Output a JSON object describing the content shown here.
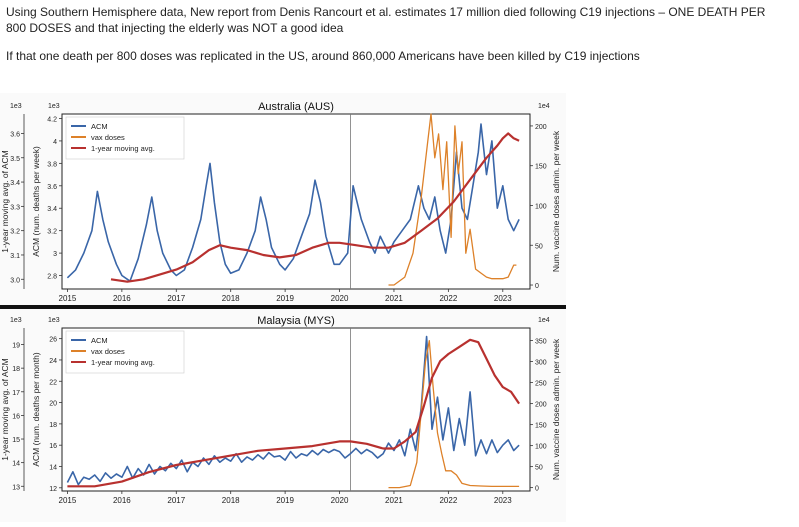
{
  "text": {
    "headline": "Using Southern Hemisphere data, New report from Denis Rancourt et al. estimates 17 million died following C19 injections – ONE DEATH PER 800 DOSES and that injecting the elderly was NOT a good idea",
    "subline": "If that one death per 800 doses was replicated in the US, around 860,000 Americans have been killed by C19 injections"
  },
  "colors": {
    "acm": "#3a66a8",
    "vax": "#dd8129",
    "avg": "#b8312f",
    "frame": "#222222",
    "divider": "#111111"
  },
  "chart_data": [
    {
      "type": "line",
      "title": "Australia (AUS)",
      "xlabel": "",
      "ylabel_left_outer": "1-year moving avg. of ACM",
      "ylabel_left_inner": "ACM (num. deaths per week)",
      "ylabel_right": "Num. vaccine doses admin. per week",
      "scale_left_outer": "1e3",
      "scale_left_inner": "1e3",
      "scale_right": "1e4",
      "xlim": [
        2014.9,
        2023.5
      ],
      "x_ticks": [
        2015,
        2016,
        2017,
        2018,
        2019,
        2020,
        2021,
        2022,
        2023
      ],
      "outer_ticks": [
        3.0,
        3.1,
        3.2,
        3.3,
        3.4,
        3.5,
        3.6
      ],
      "outer_lim": [
        2.96,
        3.68
      ],
      "inner_ticks": [
        2.8,
        3.0,
        3.2,
        3.4,
        3.6,
        3.8,
        4.0,
        4.2
      ],
      "inner_lim": [
        2.68,
        4.24
      ],
      "right_ticks": [
        0,
        50,
        100,
        150,
        200
      ],
      "right_lim": [
        -5,
        215
      ],
      "event_line_x": 2020.2,
      "legend": [
        "ACM",
        "vax doses",
        "1-year moving avg."
      ],
      "series": [
        {
          "name": "ACM",
          "axis": "inner",
          "x": [
            2015.0,
            2015.15,
            2015.3,
            2015.45,
            2015.55,
            2015.65,
            2015.75,
            2015.9,
            2016.0,
            2016.15,
            2016.3,
            2016.45,
            2016.55,
            2016.65,
            2016.75,
            2016.9,
            2017.0,
            2017.15,
            2017.3,
            2017.45,
            2017.55,
            2017.62,
            2017.7,
            2017.8,
            2017.9,
            2018.0,
            2018.15,
            2018.3,
            2018.45,
            2018.55,
            2018.65,
            2018.75,
            2018.9,
            2019.0,
            2019.15,
            2019.3,
            2019.45,
            2019.55,
            2019.65,
            2019.75,
            2019.9,
            2020.0,
            2020.15,
            2020.25,
            2020.4,
            2020.55,
            2020.65,
            2020.75,
            2020.9,
            2021.0,
            2021.15,
            2021.3,
            2021.45,
            2021.55,
            2021.65,
            2021.75,
            2021.85,
            2021.95,
            2022.05,
            2022.15,
            2022.25,
            2022.35,
            2022.45,
            2022.55,
            2022.6,
            2022.7,
            2022.8,
            2022.9,
            2023.0,
            2023.1,
            2023.2,
            2023.3
          ],
          "y": [
            2.78,
            2.85,
            3.0,
            3.2,
            3.55,
            3.3,
            3.1,
            2.9,
            2.8,
            2.75,
            2.95,
            3.25,
            3.5,
            3.2,
            3.0,
            2.85,
            2.8,
            2.85,
            3.05,
            3.3,
            3.6,
            3.8,
            3.45,
            3.1,
            2.9,
            2.82,
            2.85,
            3.0,
            3.2,
            3.5,
            3.3,
            3.05,
            2.9,
            2.85,
            2.95,
            3.15,
            3.35,
            3.65,
            3.45,
            3.15,
            2.9,
            2.9,
            3.0,
            3.6,
            3.3,
            3.1,
            3.0,
            3.15,
            3.0,
            3.1,
            3.2,
            3.3,
            3.6,
            3.4,
            3.3,
            3.5,
            3.2,
            3.0,
            3.3,
            3.9,
            3.4,
            3.3,
            3.6,
            3.9,
            4.15,
            3.7,
            4.0,
            3.4,
            3.6,
            3.3,
            3.2,
            3.3
          ]
        },
        {
          "name": "vax doses",
          "axis": "right",
          "x": [
            2020.9,
            2021.0,
            2021.2,
            2021.35,
            2021.5,
            2021.62,
            2021.68,
            2021.75,
            2021.82,
            2021.9,
            2021.97,
            2022.05,
            2022.12,
            2022.18,
            2022.25,
            2022.32,
            2022.4,
            2022.5,
            2022.6,
            2022.7,
            2022.8,
            2022.9,
            2023.0,
            2023.1,
            2023.2,
            2023.25
          ],
          "y": [
            0,
            0,
            10,
            40,
            110,
            180,
            215,
            160,
            190,
            120,
            180,
            60,
            200,
            140,
            180,
            40,
            70,
            20,
            15,
            10,
            8,
            8,
            8,
            10,
            25,
            25
          ]
        },
        {
          "name": "1-year moving avg.",
          "axis": "outer",
          "x": [
            2015.8,
            2016.1,
            2016.4,
            2016.7,
            2017.0,
            2017.3,
            2017.6,
            2017.8,
            2018.0,
            2018.3,
            2018.6,
            2018.9,
            2019.2,
            2019.5,
            2019.8,
            2020.0,
            2020.3,
            2020.6,
            2020.9,
            2021.2,
            2021.5,
            2021.8,
            2022.1,
            2022.4,
            2022.7,
            2022.9,
            2023.0,
            2023.1,
            2023.2,
            2023.3
          ],
          "y": [
            3.0,
            2.99,
            3.0,
            3.02,
            3.04,
            3.07,
            3.12,
            3.14,
            3.13,
            3.12,
            3.1,
            3.09,
            3.1,
            3.13,
            3.15,
            3.15,
            3.14,
            3.13,
            3.13,
            3.15,
            3.2,
            3.25,
            3.32,
            3.41,
            3.5,
            3.55,
            3.58,
            3.6,
            3.58,
            3.57
          ]
        }
      ]
    },
    {
      "type": "line",
      "title": "Malaysia (MYS)",
      "xlabel": "",
      "ylabel_left_outer": "1-year moving avg. of ACM",
      "ylabel_left_inner": "ACM (num. deaths per month)",
      "ylabel_right": "Num. vaccine doses admin. per week",
      "scale_left_outer": "1e3",
      "scale_left_inner": "1e3",
      "scale_right": "1e4",
      "xlim": [
        2014.9,
        2023.5
      ],
      "x_ticks": [
        2015,
        2016,
        2017,
        2018,
        2019,
        2020,
        2021,
        2022,
        2023
      ],
      "outer_ticks": [
        13,
        14,
        15,
        16,
        17,
        18,
        19
      ],
      "outer_lim": [
        12.8,
        19.7
      ],
      "inner_ticks": [
        12,
        14,
        16,
        18,
        20,
        22,
        24,
        26
      ],
      "inner_lim": [
        11.7,
        27.0
      ],
      "right_ticks": [
        0,
        50,
        100,
        150,
        200,
        250,
        300,
        350
      ],
      "right_lim": [
        -8,
        380
      ],
      "event_line_x": 2020.2,
      "legend": [
        "ACM",
        "vax doses",
        "1-year moving avg."
      ],
      "series": [
        {
          "name": "ACM",
          "axis": "inner",
          "x": [
            2015.0,
            2015.1,
            2015.2,
            2015.3,
            2015.4,
            2015.5,
            2015.6,
            2015.7,
            2015.8,
            2015.9,
            2016.0,
            2016.1,
            2016.2,
            2016.3,
            2016.4,
            2016.5,
            2016.6,
            2016.7,
            2016.8,
            2016.9,
            2017.0,
            2017.1,
            2017.2,
            2017.3,
            2017.4,
            2017.5,
            2017.6,
            2017.7,
            2017.8,
            2017.9,
            2018.0,
            2018.1,
            2018.2,
            2018.3,
            2018.4,
            2018.5,
            2018.6,
            2018.7,
            2018.8,
            2018.9,
            2019.0,
            2019.1,
            2019.2,
            2019.3,
            2019.4,
            2019.5,
            2019.6,
            2019.7,
            2019.8,
            2019.9,
            2020.0,
            2020.1,
            2020.2,
            2020.3,
            2020.4,
            2020.5,
            2020.6,
            2020.7,
            2020.8,
            2020.9,
            2021.0,
            2021.1,
            2021.2,
            2021.3,
            2021.4,
            2021.5,
            2021.6,
            2021.7,
            2021.8,
            2021.9,
            2022.0,
            2022.1,
            2022.2,
            2022.3,
            2022.4,
            2022.5,
            2022.6,
            2022.7,
            2022.8,
            2022.9,
            2023.0,
            2023.1,
            2023.2,
            2023.3
          ],
          "y": [
            12.5,
            13.5,
            12.3,
            13.0,
            12.8,
            13.2,
            12.6,
            13.4,
            12.9,
            13.3,
            13.0,
            14.0,
            12.9,
            13.8,
            13.2,
            14.2,
            13.3,
            14.0,
            13.6,
            14.3,
            13.8,
            14.6,
            13.5,
            14.4,
            14.0,
            14.8,
            14.2,
            15.0,
            14.4,
            14.8,
            14.5,
            15.2,
            14.4,
            14.9,
            14.6,
            15.1,
            14.7,
            15.3,
            14.9,
            15.0,
            14.6,
            15.4,
            14.8,
            15.2,
            15.0,
            15.5,
            15.1,
            15.6,
            15.3,
            15.6,
            15.4,
            14.8,
            15.2,
            15.7,
            15.2,
            15.6,
            15.3,
            14.8,
            15.2,
            16.2,
            15.5,
            16.5,
            15.0,
            17.5,
            15.5,
            19.5,
            26.2,
            17.5,
            20.5,
            16.5,
            19.5,
            15.5,
            18.5,
            16.0,
            21.0,
            15.0,
            16.5,
            15.2,
            16.5,
            15.3,
            16.0,
            16.5,
            15.5,
            16.0
          ]
        },
        {
          "name": "vax doses",
          "axis": "right",
          "x": [
            2020.9,
            2021.1,
            2021.3,
            2021.42,
            2021.5,
            2021.58,
            2021.65,
            2021.72,
            2021.8,
            2021.88,
            2021.95,
            2022.05,
            2022.15,
            2022.25,
            2022.4,
            2022.6,
            2022.8,
            2023.0,
            2023.2,
            2023.3
          ],
          "y": [
            0,
            0,
            5,
            60,
            180,
            300,
            350,
            240,
            130,
            80,
            40,
            40,
            30,
            10,
            5,
            4,
            3,
            3,
            3,
            3
          ]
        },
        {
          "name": "1-year moving avg.",
          "axis": "outer",
          "x": [
            2015.0,
            2015.5,
            2016.0,
            2016.5,
            2017.0,
            2017.5,
            2018.0,
            2018.5,
            2019.0,
            2019.5,
            2020.0,
            2020.2,
            2020.5,
            2020.8,
            2021.0,
            2021.2,
            2021.4,
            2021.55,
            2021.7,
            2021.85,
            2022.0,
            2022.2,
            2022.4,
            2022.55,
            2022.7,
            2022.85,
            2023.0,
            2023.15,
            2023.3
          ],
          "y": [
            13.0,
            13.0,
            13.2,
            13.6,
            13.9,
            14.1,
            14.3,
            14.5,
            14.6,
            14.7,
            14.9,
            14.9,
            14.8,
            14.6,
            14.6,
            14.9,
            15.3,
            16.4,
            17.6,
            18.3,
            18.6,
            18.9,
            19.2,
            19.1,
            18.4,
            17.7,
            17.2,
            17.0,
            16.5
          ]
        }
      ]
    }
  ]
}
